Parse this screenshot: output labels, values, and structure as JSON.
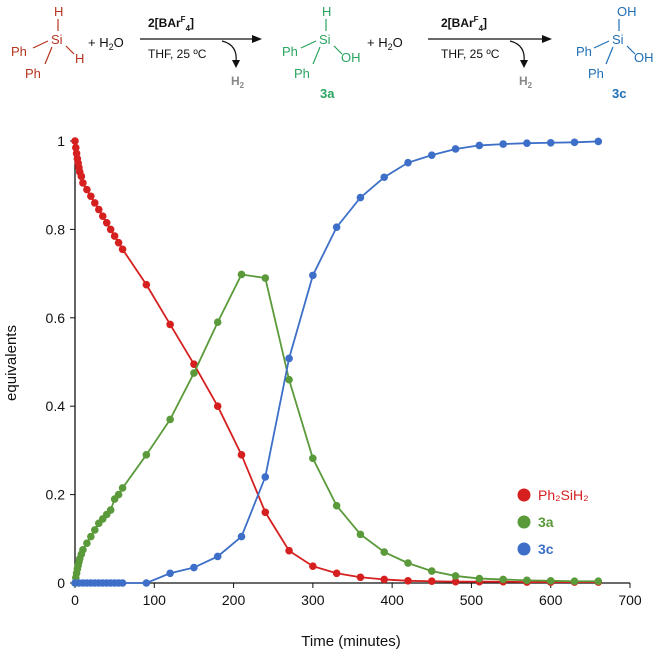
{
  "scheme": {
    "reactant": {
      "si": "Si",
      "h_top": "H",
      "h_right": "H",
      "ph_left": "Ph",
      "ph_bottom": "Ph",
      "color": "#b5341f"
    },
    "plus1": "+ H",
    "water1": "O",
    "arrow1": {
      "catalyst_main": "2[BAr",
      "catalyst_sup": "F",
      "catalyst_sub": "4",
      "catalyst_close": "]",
      "conditions": "THF, 25 ºC",
      "byproduct": "H",
      "byproduct_sub": "2"
    },
    "intermediate": {
      "si": "Si",
      "h_top": "H",
      "ph_left": "Ph",
      "ph_bottom": "Ph",
      "oh": "OH",
      "label": "3a",
      "color": "#2aa560"
    },
    "plus2": "+ H",
    "water2": "O",
    "arrow2": {
      "catalyst_main": "2[BAr",
      "catalyst_sup": "F",
      "catalyst_sub": "4",
      "catalyst_close": "]",
      "conditions": "THF, 25 ºC",
      "byproduct": "H",
      "byproduct_sub": "2"
    },
    "product": {
      "si": "Si",
      "oh_top": "OH",
      "oh_right": "OH",
      "ph_left": "Ph",
      "ph_bottom": "Ph",
      "label": "3c",
      "color": "#1f6fb5"
    }
  },
  "chart_data": {
    "type": "line",
    "xlabel": "Time (minutes)",
    "ylabel": "equivalents",
    "xlim": [
      0,
      700
    ],
    "ylim": [
      0,
      1
    ],
    "xticks": [
      0,
      100,
      200,
      300,
      400,
      500,
      600,
      700
    ],
    "yticks": [
      0,
      0.2,
      0.4,
      0.6,
      0.8,
      1
    ],
    "ytick_labels": [
      "0",
      "0.2",
      "0.4",
      "0.6",
      "0.8",
      "1"
    ],
    "grid": false,
    "legend_position": "right",
    "series": [
      {
        "name": "Ph₂SiH₂",
        "color": "#d62020",
        "x": [
          0,
          1,
          2,
          3,
          4,
          5,
          6,
          8,
          10,
          15,
          20,
          25,
          30,
          35,
          40,
          45,
          50,
          55,
          60,
          90,
          120,
          150,
          180,
          210,
          240,
          270,
          300,
          330,
          360,
          390,
          420,
          450,
          480,
          510,
          540,
          570,
          600,
          630,
          660
        ],
        "y": [
          1.0,
          0.985,
          0.972,
          0.96,
          0.95,
          0.94,
          0.93,
          0.92,
          0.905,
          0.89,
          0.875,
          0.86,
          0.845,
          0.83,
          0.815,
          0.8,
          0.785,
          0.77,
          0.755,
          0.675,
          0.585,
          0.495,
          0.4,
          0.29,
          0.16,
          0.073,
          0.038,
          0.022,
          0.013,
          0.008,
          0.005,
          0.004,
          0.003,
          0.003,
          0.003,
          0.002,
          0.002,
          0.002,
          0.002
        ]
      },
      {
        "name": "3a",
        "color": "#5a9a3a",
        "x": [
          0,
          1,
          2,
          3,
          4,
          5,
          6,
          8,
          10,
          15,
          20,
          25,
          30,
          35,
          40,
          45,
          50,
          55,
          60,
          90,
          120,
          150,
          180,
          210,
          240,
          270,
          300,
          330,
          360,
          390,
          420,
          450,
          480,
          510,
          540,
          570,
          600,
          630,
          660
        ],
        "y": [
          0.0,
          0.012,
          0.022,
          0.032,
          0.04,
          0.048,
          0.055,
          0.065,
          0.075,
          0.09,
          0.105,
          0.12,
          0.135,
          0.145,
          0.155,
          0.165,
          0.19,
          0.2,
          0.215,
          0.29,
          0.37,
          0.475,
          0.59,
          0.698,
          0.69,
          0.46,
          0.282,
          0.175,
          0.11,
          0.07,
          0.045,
          0.027,
          0.016,
          0.01,
          0.008,
          0.006,
          0.005,
          0.004,
          0.004
        ]
      },
      {
        "name": "3c",
        "color": "#3d6fc8",
        "x": [
          0,
          5,
          10,
          15,
          20,
          25,
          30,
          35,
          40,
          45,
          50,
          55,
          60,
          90,
          120,
          150,
          180,
          210,
          240,
          270,
          300,
          330,
          360,
          390,
          420,
          450,
          480,
          510,
          540,
          570,
          600,
          630,
          660
        ],
        "y": [
          0,
          0,
          0,
          0,
          0,
          0,
          0,
          0,
          0,
          0,
          0,
          0,
          0,
          0.0,
          0.022,
          0.035,
          0.06,
          0.105,
          0.24,
          0.508,
          0.696,
          0.805,
          0.872,
          0.918,
          0.951,
          0.968,
          0.982,
          0.99,
          0.993,
          0.995,
          0.996,
          0.997,
          0.999
        ]
      }
    ]
  }
}
